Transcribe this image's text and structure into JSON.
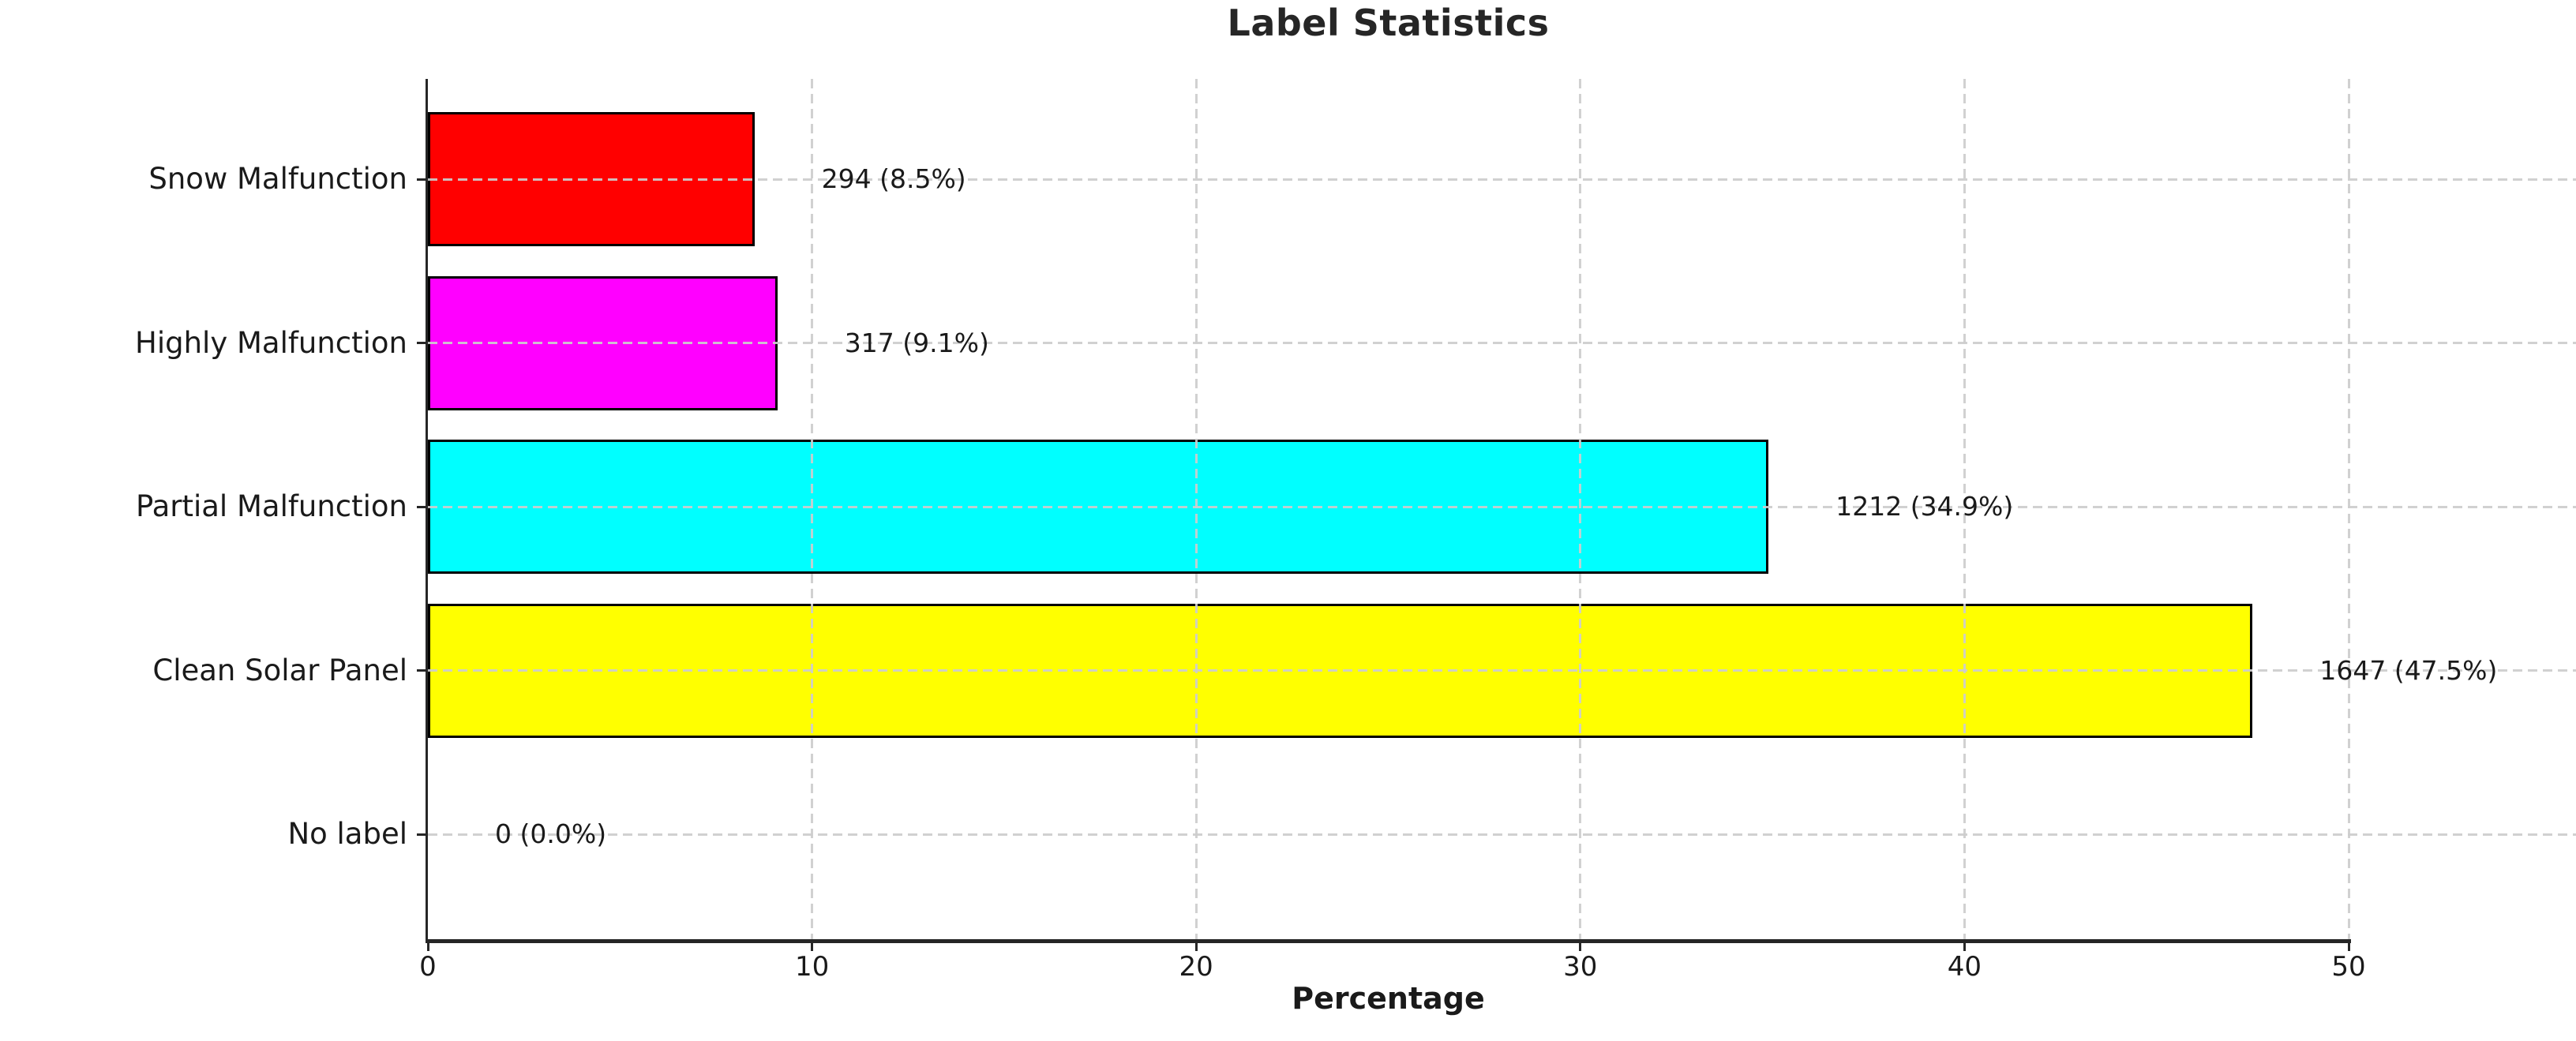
{
  "figure": {
    "title": "Label Statistics",
    "xlabel": "Percentage"
  },
  "chart_data": {
    "type": "bar",
    "orientation": "horizontal",
    "title": "Label Statistics",
    "xlabel": "Percentage",
    "ylabel": "",
    "categories": [
      "Snow Malfunction",
      "Highly Malfunction",
      "Partial Malfunction",
      "Clean Solar Panel",
      "No label"
    ],
    "counts": [
      294,
      317,
      1212,
      1647,
      0
    ],
    "percentages": [
      8.5,
      9.1,
      34.9,
      47.5,
      0.0
    ],
    "bar_labels": [
      "294 (8.5%)",
      "317 (9.1%)",
      "1212 (34.9%)",
      "1647 (47.5%)",
      "0 (0.0%)"
    ],
    "bar_colors": [
      "#ff0000",
      "#ff00ff",
      "#00ffff",
      "#ffff00",
      "#ffffff"
    ],
    "bar_edge_color": "#000000",
    "xticks": [
      0,
      10,
      20,
      30,
      40,
      50
    ],
    "xlim": [
      0,
      50
    ],
    "grid": "dashed",
    "grid_color": "#d3d3d3",
    "legend": "none",
    "axis_color": "#262626",
    "background": "#ffffff"
  }
}
